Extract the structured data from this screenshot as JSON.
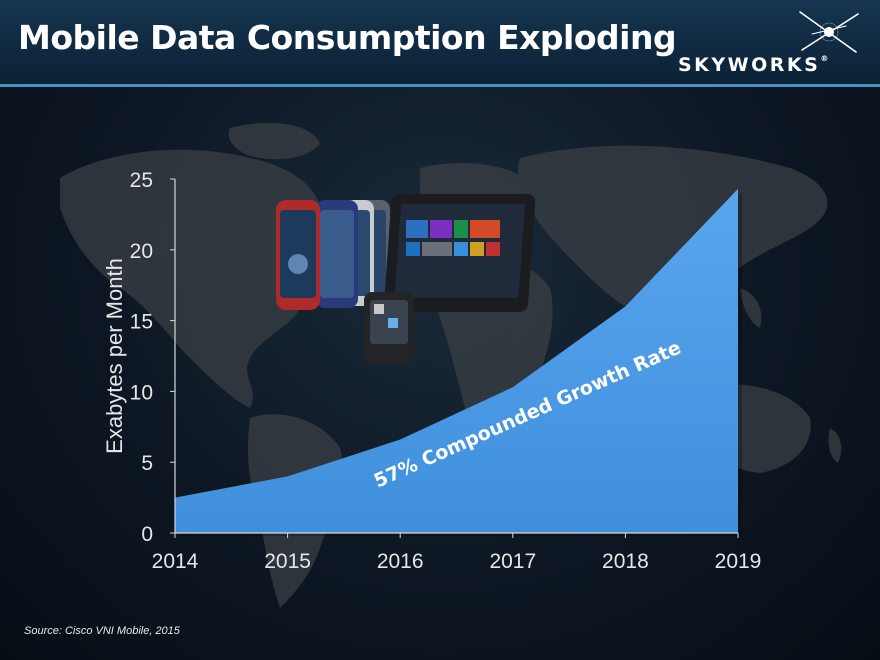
{
  "header": {
    "title": "Mobile Data Consumption Exploding",
    "brand": "SKYWORKS",
    "brand_mark": "®"
  },
  "chart_data": {
    "type": "area",
    "x": [
      2014,
      2015,
      2016,
      2017,
      2018,
      2019
    ],
    "tick_labels_x": [
      "2014",
      "2015",
      "2016",
      "2017",
      "2018",
      "2019"
    ],
    "values": [
      2.5,
      4.0,
      6.6,
      10.3,
      16.0,
      24.3
    ],
    "ylabel": "Exabytes per Month",
    "xlabel": "",
    "ylim": [
      0,
      25
    ],
    "yticks": [
      0,
      5,
      10,
      15,
      20,
      25
    ],
    "tick_labels_y": [
      "0",
      "5",
      "10",
      "15",
      "20",
      "25"
    ],
    "annotation": "57% Compounded Growth Rate",
    "grid": false,
    "colors": {
      "fill": "#3f8fdc",
      "fill_light": "#5aa6ee",
      "axis": "#d9d9d9"
    }
  },
  "footer": {
    "source": "Source: Cisco VNI Mobile, 2015"
  },
  "icons": {
    "logo": "skyworks-star-icon",
    "devices": [
      "smartphone-icon",
      "tablet-icon",
      "smartwatch-icon"
    ],
    "background": "world-map"
  }
}
